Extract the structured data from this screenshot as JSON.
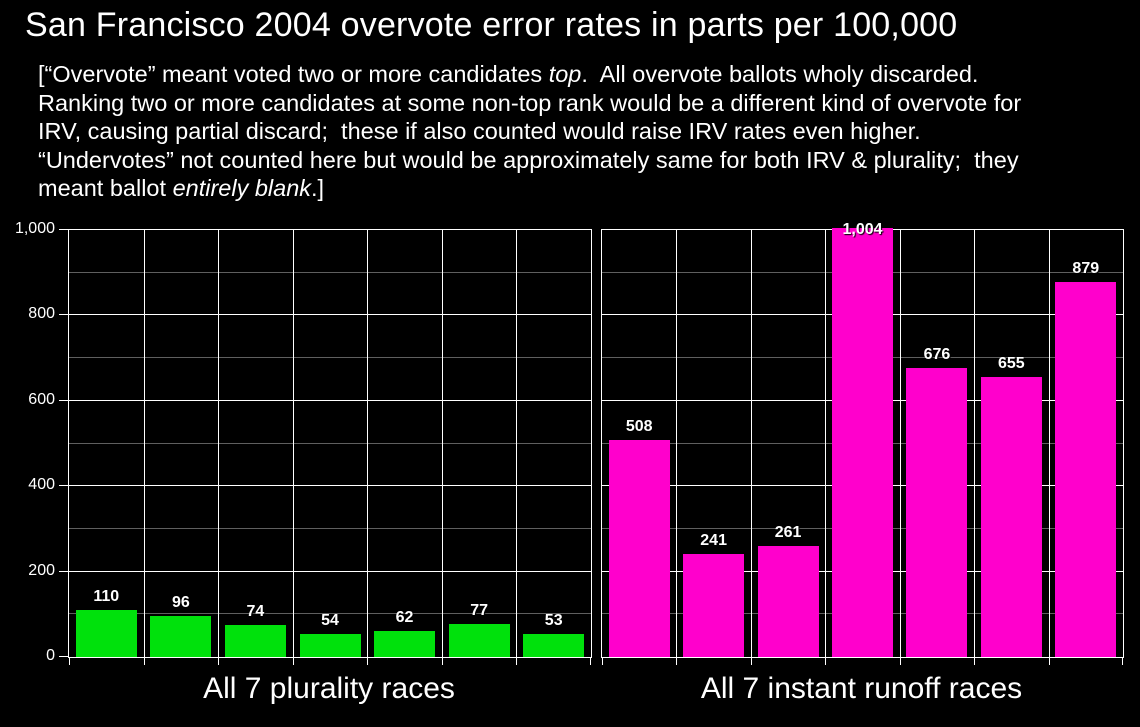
{
  "title": "San Francisco 2004 overvote error rates in parts per 100,000",
  "subtitle_segments": [
    {
      "text": "[“Overvote” meant voted two or more candidates ",
      "italic": false
    },
    {
      "text": "top",
      "italic": true
    },
    {
      "text": ".  All overvote ballots wholy discarded.  Ranking two or more candidates at some non-top rank would be a different kind of overvote for IRV, causing partial discard;  these if also counted would raise IRV rates even higher.  “Undervotes” not counted here but would be approximately same for both IRV & plurality;  they meant ballot ",
      "italic": false
    },
    {
      "text": "entirely blank",
      "italic": true
    },
    {
      "text": ".]",
      "italic": false
    }
  ],
  "chart_data": {
    "type": "bar",
    "title": "San Francisco 2004 overvote error rates in parts per 100,000",
    "xlabel": "",
    "ylabel": "",
    "ylim": [
      0,
      1000
    ],
    "ytick_step": 200,
    "yticks": [
      "0",
      "200",
      "400",
      "600",
      "800",
      "1,000"
    ],
    "minor_grid_step": 100,
    "grid": true,
    "legend": "none",
    "bar_value_labels_visible": true,
    "groups": [
      {
        "category": "All 7 plurality races",
        "color": "#00e10c",
        "values": [
          110,
          96,
          74,
          54,
          62,
          77,
          53
        ]
      },
      {
        "category": "All 7 instant runoff races",
        "color": "#ff00cc",
        "values": [
          508,
          241,
          261,
          1004,
          676,
          655,
          879
        ]
      }
    ],
    "colors": {
      "background": "#000000",
      "text": "#ffffff",
      "major_grid": "#ffffff",
      "minor_grid": "#5f5f5f"
    }
  }
}
